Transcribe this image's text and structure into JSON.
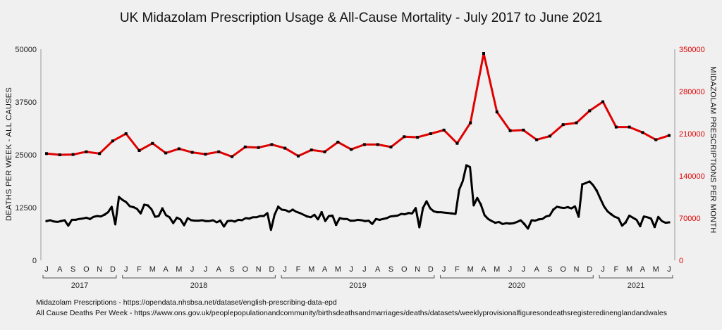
{
  "chart_data": {
    "type": "line",
    "title": "UK Midazolam Prescription Usage & All-Cause Mortality - July 2017 to June 2021",
    "ylabel_left": "DEATHS PER WEEK - ALL CAUSES",
    "ylabel_right": "MIDAZOLAM PRESCRIPTIONS PER MONTH",
    "ylim_left": [
      0,
      50000
    ],
    "ylim_right": [
      0,
      350000
    ],
    "yticks_left": [
      "0",
      "12500",
      "25000",
      "37500",
      "50000"
    ],
    "yticks_right": [
      "0",
      "70000",
      "140000",
      "210000",
      "280000",
      "350000"
    ],
    "grid": false,
    "months": [
      "J",
      "A",
      "S",
      "O",
      "N",
      "D",
      "J",
      "F",
      "M",
      "A",
      "M",
      "J",
      "J",
      "A",
      "S",
      "O",
      "N",
      "D",
      "J",
      "F",
      "M",
      "A",
      "M",
      "J",
      "J",
      "A",
      "S",
      "O",
      "N",
      "D",
      "J",
      "F",
      "M",
      "A",
      "M",
      "J",
      "J",
      "A",
      "S",
      "O",
      "N",
      "D",
      "J",
      "F",
      "M",
      "A",
      "M",
      "J"
    ],
    "years": [
      {
        "label": "2017",
        "start_month": 0,
        "end_month": 5
      },
      {
        "label": "2018",
        "start_month": 6,
        "end_month": 17
      },
      {
        "label": "2019",
        "start_month": 18,
        "end_month": 29
      },
      {
        "label": "2020",
        "start_month": 30,
        "end_month": 41
      },
      {
        "label": "2021",
        "start_month": 42,
        "end_month": 47
      }
    ],
    "series": [
      {
        "name": "Midazolam Prescriptions",
        "axis": "right",
        "color": "#e00000",
        "values": [
          177000,
          175000,
          175500,
          180000,
          177000,
          198000,
          210000,
          182000,
          194000,
          178000,
          185000,
          179000,
          176000,
          180000,
          172000,
          188000,
          187000,
          192000,
          186000,
          173000,
          183000,
          180000,
          196000,
          184000,
          192000,
          192000,
          188000,
          205000,
          204000,
          210000,
          216000,
          194000,
          228000,
          343000,
          246000,
          215000,
          216000,
          200000,
          206000,
          225000,
          228000,
          248000,
          263000,
          221000,
          221000,
          212000,
          200000,
          207000
        ]
      },
      {
        "name": "All Cause Deaths Per Week",
        "axis": "left",
        "color": "#000000",
        "values": [
          9300,
          9500,
          9200,
          9100,
          9300,
          9500,
          8200,
          9600,
          9600,
          9800,
          9900,
          10100,
          9800,
          10300,
          10500,
          10400,
          10800,
          11400,
          12700,
          8500,
          15000,
          14300,
          13800,
          12800,
          12600,
          12200,
          11100,
          13200,
          13000,
          12100,
          10300,
          10500,
          12300,
          10700,
          10200,
          8800,
          10100,
          9700,
          8300,
          10000,
          9500,
          9400,
          9400,
          9500,
          9300,
          9300,
          9500,
          9000,
          9400,
          8000,
          9300,
          9400,
          9200,
          9600,
          9500,
          10000,
          9900,
          10200,
          10200,
          10500,
          10500,
          11200,
          7200,
          10800,
          12700,
          12000,
          11900,
          11500,
          12000,
          11500,
          11200,
          10800,
          10400,
          10200,
          10800,
          9700,
          11400,
          9300,
          10500,
          10600,
          8400,
          10000,
          9800,
          9800,
          9400,
          9400,
          9600,
          9500,
          9300,
          9400,
          8600,
          9800,
          9600,
          9800,
          10000,
          10400,
          10500,
          10600,
          11000,
          10900,
          11200,
          11100,
          12400,
          7800,
          12400,
          14000,
          12300,
          11600,
          11400,
          11400,
          11300,
          11200,
          11100,
          11000,
          16700,
          18800,
          22500,
          22100,
          13000,
          14800,
          13200,
          10700,
          9800,
          9300,
          8900,
          9100,
          8600,
          8800,
          8700,
          8800,
          9100,
          9500,
          8600,
          7500,
          9500,
          9400,
          9700,
          9800,
          10400,
          10600,
          12000,
          12700,
          12500,
          12400,
          12600,
          12300,
          12800,
          10300,
          18000,
          18300,
          18700,
          17800,
          16500,
          14600,
          12800,
          11600,
          10900,
          10300,
          10000,
          8200,
          9000,
          10600,
          10100,
          9600,
          8100,
          10400,
          10200,
          9900,
          7900,
          10300,
          9300,
          8900,
          9000
        ]
      }
    ]
  },
  "footer": {
    "line1": "Midazolam Prescriptions - https://opendata.nhsbsa.net/dataset/english-prescribing-data-epd",
    "line2": "All Cause Deaths Per Week - https://www.ons.gov.uk/peoplepopulationandcommunity/birthsdeathsandmarriages/deaths/datasets/weeklyprovisionalfiguresondeathsregisteredinenglandandwales"
  },
  "colors": {
    "background": "#f0f0f0",
    "prescriptions": "#e00000",
    "deaths": "#000000",
    "axis": "#999999"
  }
}
